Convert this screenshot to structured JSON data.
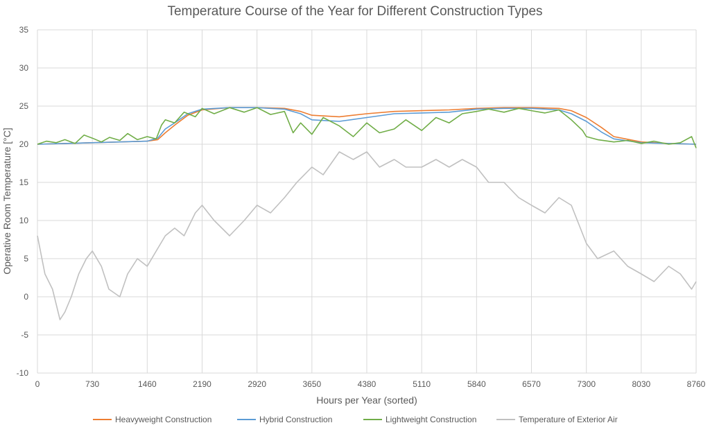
{
  "chart_data": {
    "type": "line",
    "title": "Temperature Course of the Year for Different Construction Types",
    "xlabel": "Hours per Year (sorted)",
    "ylabel": "Operative Room Temperature [°C]",
    "xlim": [
      0,
      8760
    ],
    "ylim": [
      -10,
      35
    ],
    "xticks": [
      0,
      730,
      1460,
      2190,
      2920,
      3650,
      4380,
      5110,
      5840,
      6570,
      7300,
      8030,
      8760
    ],
    "yticks": [
      -10,
      -5,
      0,
      5,
      10,
      15,
      20,
      25,
      30,
      35
    ],
    "grid": true,
    "legend_position": "bottom",
    "series": [
      {
        "name": "Heavyweight Construction",
        "color": "#ed7d31",
        "x": [
          0,
          365,
          730,
          1095,
          1460,
          1600,
          1700,
          1825,
          2000,
          2190,
          2555,
          2920,
          3285,
          3500,
          3650,
          4015,
          4380,
          4745,
          5110,
          5475,
          5840,
          6205,
          6570,
          6935,
          7100,
          7300,
          7500,
          7665,
          8030,
          8395,
          8760
        ],
        "values": [
          20.0,
          20.1,
          20.2,
          20.3,
          20.4,
          20.6,
          21.5,
          22.5,
          23.8,
          24.5,
          24.8,
          24.8,
          24.7,
          24.3,
          23.8,
          23.6,
          24.0,
          24.3,
          24.4,
          24.5,
          24.7,
          24.8,
          24.8,
          24.7,
          24.4,
          23.5,
          22.2,
          21.0,
          20.3,
          20.1,
          20.0
        ]
      },
      {
        "name": "Hybrid Construction",
        "color": "#5b9bd5",
        "x": [
          0,
          365,
          730,
          1095,
          1460,
          1600,
          1700,
          1825,
          2000,
          2190,
          2555,
          2920,
          3285,
          3500,
          3650,
          4015,
          4380,
          4745,
          5110,
          5475,
          5840,
          6205,
          6570,
          6935,
          7100,
          7300,
          7500,
          7665,
          8030,
          8395,
          8760
        ],
        "values": [
          20.0,
          20.1,
          20.2,
          20.3,
          20.4,
          20.8,
          22.0,
          22.8,
          24.0,
          24.6,
          24.8,
          24.8,
          24.6,
          24.0,
          23.2,
          23.0,
          23.5,
          24.0,
          24.1,
          24.2,
          24.6,
          24.7,
          24.7,
          24.5,
          24.0,
          23.0,
          21.6,
          20.7,
          20.2,
          20.1,
          20.0
        ]
      },
      {
        "name": "Lightweight Construction",
        "color": "#70ad47",
        "x": [
          0,
          120,
          250,
          365,
          500,
          620,
          730,
          850,
          960,
          1095,
          1200,
          1330,
          1460,
          1580,
          1650,
          1700,
          1825,
          1950,
          2100,
          2190,
          2350,
          2555,
          2750,
          2920,
          3100,
          3285,
          3400,
          3500,
          3650,
          3800,
          4015,
          4200,
          4380,
          4550,
          4745,
          4900,
          5110,
          5300,
          5475,
          5650,
          5840,
          6000,
          6205,
          6400,
          6570,
          6750,
          6935,
          7100,
          7250,
          7300,
          7450,
          7665,
          7850,
          8030,
          8200,
          8395,
          8550,
          8700,
          8760
        ],
        "values": [
          20.0,
          20.4,
          20.2,
          20.6,
          20.1,
          21.2,
          20.8,
          20.3,
          20.9,
          20.5,
          21.4,
          20.6,
          21.0,
          20.7,
          22.5,
          23.2,
          22.8,
          24.2,
          23.6,
          24.7,
          24.0,
          24.8,
          24.2,
          24.8,
          23.9,
          24.3,
          21.5,
          22.8,
          21.3,
          23.5,
          22.4,
          21.0,
          22.8,
          21.5,
          22.0,
          23.2,
          21.8,
          23.5,
          22.8,
          24.0,
          24.3,
          24.6,
          24.2,
          24.7,
          24.4,
          24.1,
          24.5,
          23.2,
          21.8,
          21.0,
          20.6,
          20.3,
          20.5,
          20.1,
          20.4,
          20.0,
          20.2,
          21.0,
          19.5
        ]
      },
      {
        "name": "Temperature of Exterior Air",
        "color": "#c0c0c0",
        "x": [
          0,
          100,
          200,
          300,
          365,
          450,
          550,
          650,
          730,
          850,
          950,
          1095,
          1200,
          1330,
          1460,
          1580,
          1700,
          1825,
          1950,
          2100,
          2190,
          2350,
          2555,
          2750,
          2920,
          3100,
          3285,
          3450,
          3650,
          3800,
          4015,
          4200,
          4380,
          4550,
          4745,
          4900,
          5110,
          5300,
          5475,
          5650,
          5840,
          6000,
          6205,
          6400,
          6570,
          6750,
          6935,
          7100,
          7300,
          7450,
          7665,
          7850,
          8030,
          8200,
          8395,
          8550,
          8700,
          8760
        ],
        "values": [
          8.0,
          3.0,
          1.0,
          -3.0,
          -2.0,
          0.0,
          3.0,
          5.0,
          6.0,
          4.0,
          1.0,
          0.0,
          3.0,
          5.0,
          4.0,
          6.0,
          8.0,
          9.0,
          8.0,
          11.0,
          12.0,
          10.0,
          8.0,
          10.0,
          12.0,
          11.0,
          13.0,
          15.0,
          17.0,
          16.0,
          19.0,
          18.0,
          19.0,
          17.0,
          18.0,
          17.0,
          17.0,
          18.0,
          17.0,
          18.0,
          17.0,
          15.0,
          15.0,
          13.0,
          12.0,
          11.0,
          13.0,
          12.0,
          7.0,
          5.0,
          6.0,
          4.0,
          3.0,
          2.0,
          4.0,
          3.0,
          1.0,
          2.0
        ]
      }
    ]
  }
}
